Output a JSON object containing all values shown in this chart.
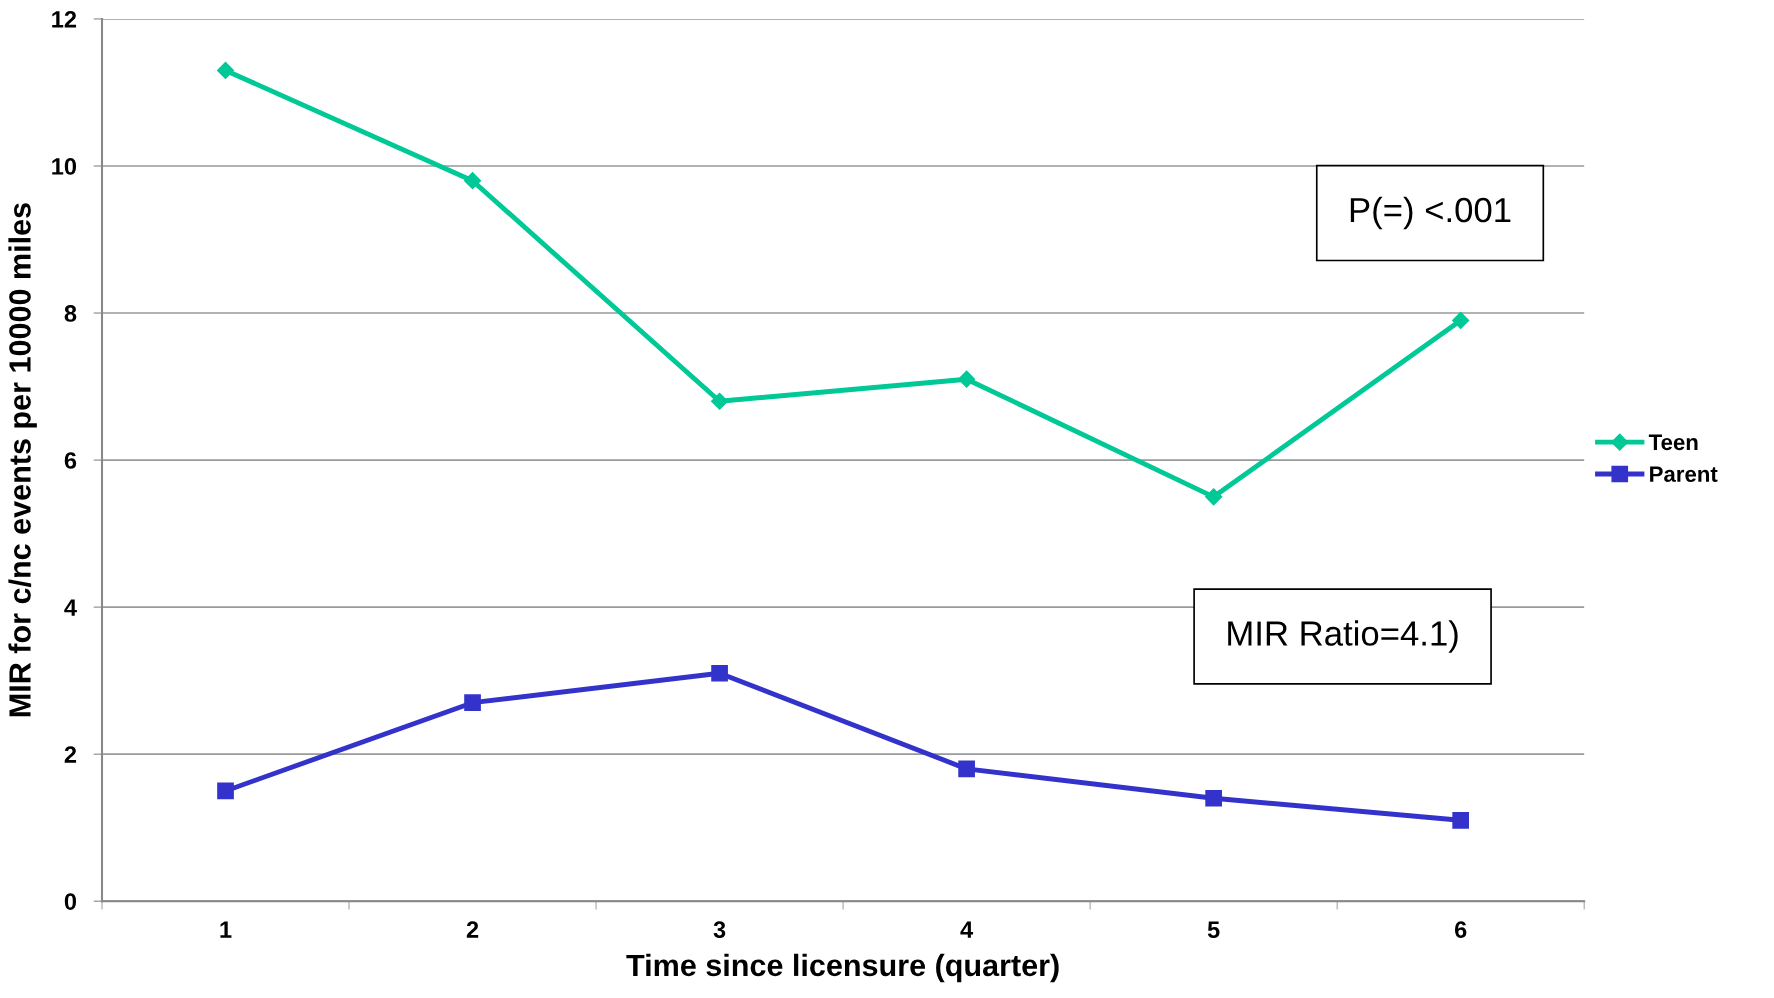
{
  "chart_data": {
    "type": "line",
    "xlabel": "Time since licensure (quarter)",
    "ylabel": "MIR for c/nc events per 10000 miles",
    "categories": [
      "1",
      "2",
      "3",
      "4",
      "5",
      "6"
    ],
    "series": [
      {
        "name": "Teen",
        "color": "#00c896",
        "marker": "diamond",
        "values": [
          11.3,
          9.8,
          6.8,
          7.1,
          5.5,
          7.9
        ]
      },
      {
        "name": "Parent",
        "color": "#3333cc",
        "marker": "square",
        "values": [
          1.5,
          2.7,
          3.1,
          1.8,
          1.4,
          1.1
        ]
      }
    ],
    "ylim": [
      0,
      12
    ],
    "yticks": [
      0,
      2,
      4,
      6,
      8,
      10,
      12
    ],
    "grid": "y",
    "legend": "right",
    "line_style": "solid",
    "annotations": [
      "P(=) <.001",
      "MIR Ratio=4.1)"
    ]
  }
}
